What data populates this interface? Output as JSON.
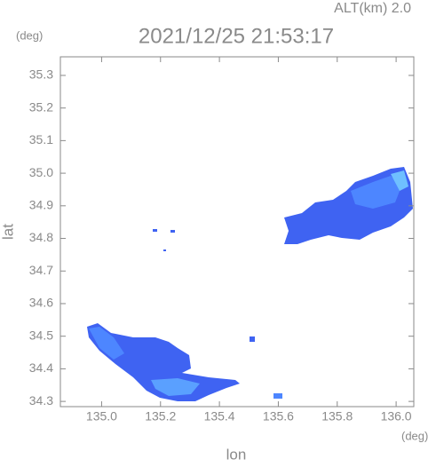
{
  "chart_data": {
    "type": "radar-map",
    "title": "2021/12/25 21:53:17",
    "subtitle": "ALT(km) 2.0",
    "y_unit": "(deg)",
    "x_unit": "(deg)",
    "x_label": "lon",
    "y_label": "lat",
    "xlim": [
      134.86,
      136.06
    ],
    "ylim": [
      34.284,
      35.357
    ],
    "xticks": [
      {
        "value": 135,
        "label": "135.0"
      },
      135.2,
      135.4,
      135.6,
      135.8,
      {
        "value": 136,
        "label": "136.0"
      }
    ],
    "yticks": [
      34.3,
      34.4,
      34.5,
      34.6,
      34.7,
      34.8,
      34.9,
      {
        "value": 35,
        "label": "35.0"
      },
      35.1,
      35.2,
      35.3
    ]
  }
}
